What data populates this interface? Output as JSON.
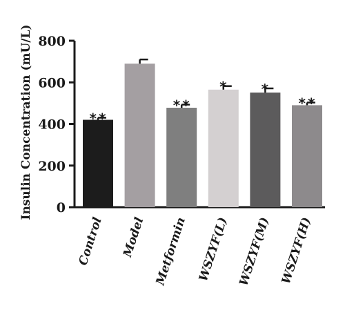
{
  "chart_data": {
    "type": "bar",
    "title": "",
    "xlabel": "",
    "ylabel": "Insulin Concentration (mU/L)",
    "ylim": [
      0,
      800
    ],
    "yticks": [
      0,
      200,
      400,
      600,
      800
    ],
    "grid": false,
    "categories": [
      "Control",
      "Model",
      "Metformin",
      "WSZYF(L)",
      "WSZYF(M)",
      "WSZYF(H)"
    ],
    "values": [
      420,
      690,
      478,
      565,
      551,
      490
    ],
    "errors": [
      10,
      20,
      15,
      17,
      20,
      13
    ],
    "significance": [
      "**",
      "",
      "**",
      "*",
      "*",
      "**"
    ],
    "colors": [
      "#1c1c1c",
      "#a49fa2",
      "#7f7f7f",
      "#d4d0d1",
      "#5c5b5c",
      "#8d8a8c"
    ]
  }
}
